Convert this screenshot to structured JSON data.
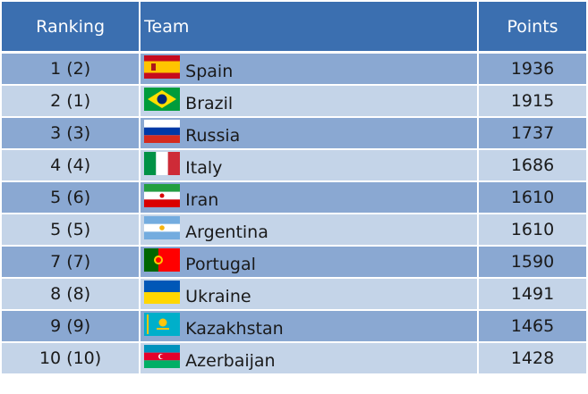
{
  "table": {
    "headers": {
      "ranking": "Ranking",
      "team": "Team",
      "points": "Points"
    },
    "rows": [
      {
        "ranking": "1 (2)",
        "team": "Spain",
        "points": "1936",
        "flag_icon": "spain-flag-icon"
      },
      {
        "ranking": "2 (1)",
        "team": "Brazil",
        "points": "1915",
        "flag_icon": "brazil-flag-icon"
      },
      {
        "ranking": "3 (3)",
        "team": "Russia",
        "points": "1737",
        "flag_icon": "russia-flag-icon"
      },
      {
        "ranking": "4 (4)",
        "team": "Italy",
        "points": "1686",
        "flag_icon": "italy-flag-icon"
      },
      {
        "ranking": "5 (6)",
        "team": "Iran",
        "points": "1610",
        "flag_icon": "iran-flag-icon"
      },
      {
        "ranking": "5 (5)",
        "team": "Argentina",
        "points": "1610",
        "flag_icon": "argentina-flag-icon"
      },
      {
        "ranking": "7 (7)",
        "team": "Portugal",
        "points": "1590",
        "flag_icon": "portugal-flag-icon"
      },
      {
        "ranking": "8 (8)",
        "team": "Ukraine",
        "points": "1491",
        "flag_icon": "ukraine-flag-icon"
      },
      {
        "ranking": "9 (9)",
        "team": "Kazakhstan",
        "points": "1465",
        "flag_icon": "kazakhstan-flag-icon"
      },
      {
        "ranking": "10 (10)",
        "team": "Azerbaijan",
        "points": "1428",
        "flag_icon": "azerbaijan-flag-icon"
      }
    ]
  },
  "colors": {
    "header_bg": "#3b6fb0",
    "row_dark": "#8aa8d2",
    "row_light": "#c4d4e8"
  }
}
